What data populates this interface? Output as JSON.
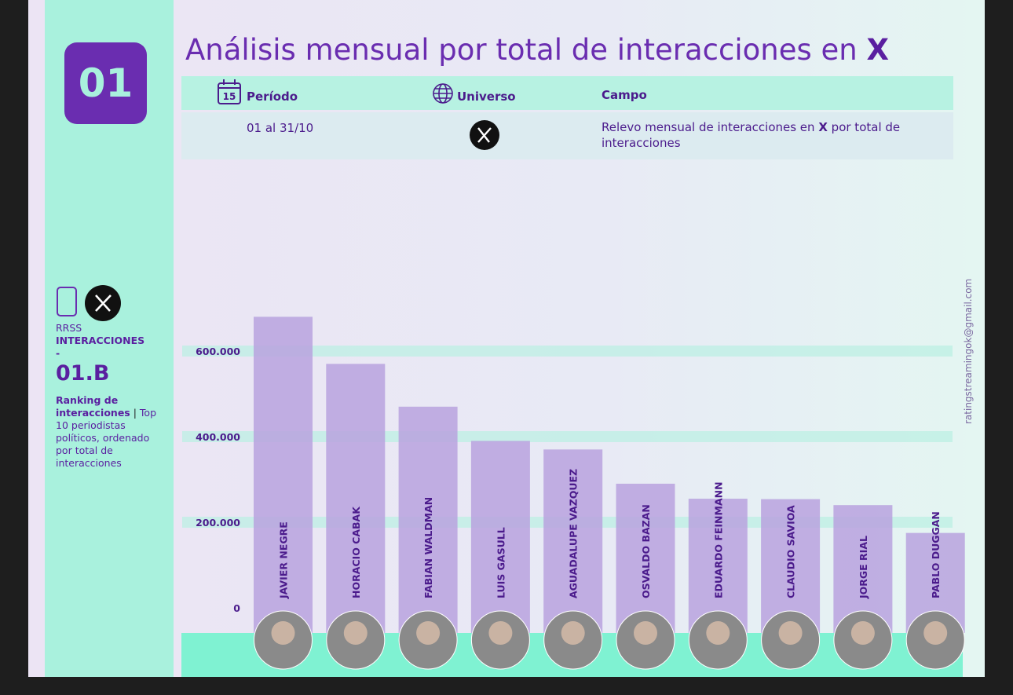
{
  "badge": "01",
  "title": {
    "text": "Análisis mensual por total de interacciones en ",
    "emphasis": "X"
  },
  "table": {
    "headers": [
      "Período",
      "Universo",
      "Campo"
    ],
    "calendar_day": "15",
    "period": "01 al 31/10",
    "field": {
      "before": "Relevo mensual de interacciones en ",
      "emphasis": "X",
      "after": " por total de interacciones"
    }
  },
  "sidebar": {
    "network": "RRSS",
    "metric": "INTERACCIONES",
    "dash": "-",
    "code": "01.B",
    "description": {
      "bold": "Ranking de interacciones",
      "separator": " | ",
      "text": "Top 10 periodistas políticos, ordenado por total de interacciones"
    }
  },
  "watermark": "ratingstreamingok@gmail.com",
  "chart_data": {
    "type": "bar",
    "categories": [
      "JAVIER NEGRE",
      "HORACIO CABAK",
      "FABIAN WALDMAN",
      "LUIS GASULL",
      "AGUADALUPE VAZQUEZ",
      "OSVALDO BAZAN",
      "EDUARDO FEINMANN",
      "CLAUDIO SAVIOA",
      "JORGE RIAL",
      "PABLO DUGGAN"
    ],
    "values": [
      680000,
      570000,
      470000,
      390000,
      370000,
      290000,
      255000,
      254000,
      240000,
      175000
    ],
    "color": "#b9a2de",
    "ylim": [
      0,
      700000
    ],
    "yticks": [
      0,
      {
        "value": 200000,
        "label": "200.000"
      },
      {
        "value": 400000,
        "label": "400.000"
      },
      {
        "value": 600000,
        "label": "600.000"
      }
    ],
    "grid": true
  }
}
